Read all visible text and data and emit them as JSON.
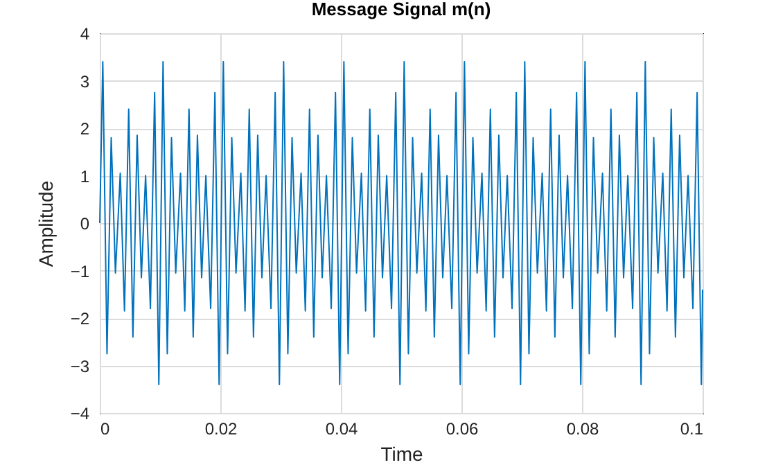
{
  "chart_data": {
    "type": "line",
    "title": "Message Signal m(n)",
    "xlabel": "Time",
    "ylabel": "Amplitude",
    "x": [
      0,
      0.0005,
      0.0012,
      0.0019,
      0.0026,
      0.0034,
      0.0041,
      0.0048,
      0.0055,
      0.0062,
      0.0069,
      0.0076,
      0.0084,
      0.0091,
      0.0098,
      0.0105,
      0.0112,
      0.0119,
      0.0126,
      0.0134,
      0.0141,
      0.0148,
      0.0155,
      0.0162,
      0.0169,
      0.0176,
      0.0184,
      0.0191,
      0.0198,
      0.0205,
      0.0212,
      0.0219,
      0.0226,
      0.0234,
      0.0241,
      0.0248,
      0.0255,
      0.0262,
      0.0269,
      0.0276,
      0.0284,
      0.0291,
      0.0298,
      0.0305,
      0.0312,
      0.0319,
      0.0326,
      0.0334,
      0.0341,
      0.0348,
      0.0355,
      0.0362,
      0.0369,
      0.0376,
      0.0384,
      0.0391,
      0.0398,
      0.0405,
      0.0412,
      0.0419,
      0.0426,
      0.0434,
      0.0441,
      0.0448,
      0.0455,
      0.0462,
      0.0469,
      0.0476,
      0.0484,
      0.0491,
      0.0498,
      0.0505,
      0.0512,
      0.0519,
      0.0526,
      0.0534,
      0.0541,
      0.0548,
      0.0555,
      0.0562,
      0.0569,
      0.0576,
      0.0584,
      0.0591,
      0.0598,
      0.0605,
      0.0612,
      0.0619,
      0.0626,
      0.0634,
      0.0641,
      0.0648,
      0.0655,
      0.0662,
      0.0669,
      0.0676,
      0.0684,
      0.0691,
      0.0698,
      0.0705,
      0.0712,
      0.0719,
      0.0726,
      0.0734,
      0.0741,
      0.0748,
      0.0755,
      0.0762,
      0.0769,
      0.0776,
      0.0784,
      0.0791,
      0.0798,
      0.0805,
      0.0812,
      0.0819,
      0.0826,
      0.0834,
      0.0841,
      0.0848,
      0.0855,
      0.0862,
      0.0869,
      0.0876,
      0.0884,
      0.0891,
      0.0898,
      0.0905,
      0.0912,
      0.0919,
      0.0926,
      0.0934,
      0.0941,
      0.0948,
      0.0955,
      0.0962,
      0.0969,
      0.0976,
      0.0984,
      0.0991,
      0.0998,
      0.1
    ],
    "series": [
      {
        "color": "#0072bd",
        "values": [
          0,
          3.4,
          -2.75,
          1.8,
          -1.05,
          1.05,
          -1.85,
          2.4,
          -2.4,
          1.85,
          -1.15,
          1.0,
          -1.8,
          2.75,
          -3.4,
          3.4,
          -2.75,
          1.8,
          -1.05,
          1.05,
          -1.85,
          2.4,
          -2.4,
          1.85,
          -1.15,
          1.0,
          -1.8,
          2.75,
          -3.4,
          3.4,
          -2.75,
          1.8,
          -1.05,
          1.05,
          -1.85,
          2.4,
          -2.4,
          1.85,
          -1.15,
          1.0,
          -1.8,
          2.75,
          -3.4,
          3.4,
          -2.75,
          1.8,
          -1.05,
          1.05,
          -1.85,
          2.4,
          -2.4,
          1.85,
          -1.15,
          1.0,
          -1.8,
          2.75,
          -3.4,
          3.4,
          -2.75,
          1.8,
          -1.05,
          1.05,
          -1.85,
          2.4,
          -2.4,
          1.85,
          -1.15,
          1.0,
          -1.8,
          2.75,
          -3.4,
          3.4,
          -2.75,
          1.8,
          -1.05,
          1.05,
          -1.85,
          2.4,
          -2.4,
          1.85,
          -1.15,
          1.0,
          -1.8,
          2.75,
          -3.4,
          3.4,
          -2.75,
          1.8,
          -1.05,
          1.05,
          -1.85,
          2.4,
          -2.4,
          1.85,
          -1.15,
          1.0,
          -1.8,
          2.75,
          -3.4,
          3.4,
          -2.75,
          1.8,
          -1.05,
          1.05,
          -1.85,
          2.4,
          -2.4,
          1.85,
          -1.15,
          1.0,
          -1.8,
          2.75,
          -3.4,
          3.4,
          -2.75,
          1.8,
          -1.05,
          1.05,
          -1.85,
          2.4,
          -2.4,
          1.85,
          -1.15,
          1.0,
          -1.8,
          2.75,
          -3.4,
          3.4,
          -2.75,
          1.8,
          -1.05,
          1.05,
          -1.85,
          2.4,
          -2.4,
          1.85,
          -1.15,
          1.0,
          -1.8,
          2.75,
          -3.4,
          -1.4
        ]
      }
    ],
    "xlim": [
      0,
      0.1
    ],
    "xticks": [
      0,
      0.02,
      0.04,
      0.06,
      0.08,
      0.1
    ],
    "ylim": [
      -4,
      4
    ],
    "yticks": [
      -4,
      -3,
      -2,
      -1,
      0,
      1,
      2,
      3,
      4
    ],
    "grid": true
  }
}
